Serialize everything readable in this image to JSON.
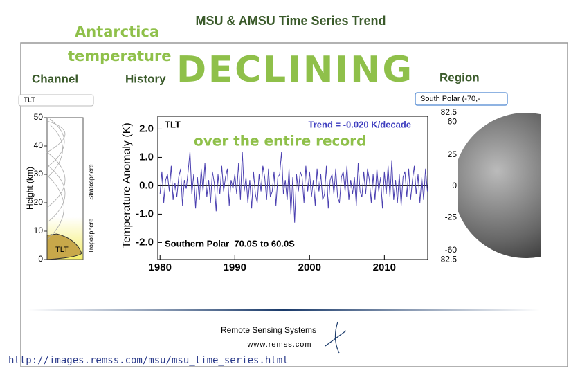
{
  "header": {
    "title": "MSU & AMSU Time Series Trend"
  },
  "annotations": {
    "line1": "Antarctica",
    "line2": "temperature",
    "headline": "DECLINING",
    "subline": "over the entire record"
  },
  "labels": {
    "channel": "Channel",
    "history": "History",
    "region": "Region"
  },
  "controls": {
    "channel": "TLT",
    "region": "South Polar (-70,-"
  },
  "height_panel": {
    "axis_label": "Height (km)",
    "ylim": [
      0,
      50
    ],
    "ticks": [
      0,
      10,
      20,
      30,
      40,
      50
    ],
    "upper_layer": "Stratosphere",
    "lower_layer": "Troposphere",
    "channel": "TLT"
  },
  "chart_data": {
    "type": "line",
    "ylabel": "Temperature Anomaly (K)",
    "channel_label": "TLT",
    "trend_label": "Trend = -0.020 K/decade",
    "region_label": "Southern Polar  70.0S to 60.0S",
    "xlim": [
      1979.7,
      2015.8
    ],
    "ylim": [
      -2.6,
      2.45
    ],
    "xticks": [
      1980,
      1990,
      2000,
      2010
    ],
    "yticks": [
      {
        "value": 2,
        "label": "2.0"
      },
      {
        "value": 1,
        "label": "1.0"
      },
      {
        "value": 0,
        "label": "0.0"
      },
      {
        "value": -1,
        "label": "-1.0"
      },
      {
        "value": -2,
        "label": "-2.0"
      }
    ],
    "x": [
      1980,
      1980.25,
      1980.5,
      1980.75,
      1981,
      1981.25,
      1981.5,
      1981.75,
      1982,
      1982.25,
      1982.5,
      1982.75,
      1983,
      1983.25,
      1983.5,
      1983.75,
      1984,
      1984.25,
      1984.5,
      1984.75,
      1985,
      1985.25,
      1985.5,
      1985.75,
      1986,
      1986.25,
      1986.5,
      1986.75,
      1987,
      1987.25,
      1987.5,
      1987.75,
      1988,
      1988.25,
      1988.5,
      1988.75,
      1989,
      1989.25,
      1989.5,
      1989.75,
      1990,
      1990.25,
      1990.5,
      1990.75,
      1991,
      1991.25,
      1991.5,
      1991.75,
      1992,
      1992.25,
      1992.5,
      1992.75,
      1993,
      1993.25,
      1993.5,
      1993.75,
      1994,
      1994.25,
      1994.5,
      1994.75,
      1995,
      1995.25,
      1995.5,
      1995.75,
      1996,
      1996.25,
      1996.5,
      1996.75,
      1997,
      1997.25,
      1997.5,
      1997.75,
      1998,
      1998.25,
      1998.5,
      1998.75,
      1999,
      1999.25,
      1999.5,
      1999.75,
      2000,
      2000.25,
      2000.5,
      2000.75,
      2001,
      2001.25,
      2001.5,
      2001.75,
      2002,
      2002.25,
      2002.5,
      2002.75,
      2003,
      2003.25,
      2003.5,
      2003.75,
      2004,
      2004.25,
      2004.5,
      2004.75,
      2005,
      2005.25,
      2005.5,
      2005.75,
      2006,
      2006.25,
      2006.5,
      2006.75,
      2007,
      2007.25,
      2007.5,
      2007.75,
      2008,
      2008.25,
      2008.5,
      2008.75,
      2009,
      2009.25,
      2009.5,
      2009.75,
      2010,
      2010.25,
      2010.5,
      2010.75,
      2011,
      2011.25,
      2011.5,
      2011.75,
      2012,
      2012.25,
      2012.5,
      2012.75,
      2013,
      2013.25,
      2013.5,
      2013.75,
      2014,
      2014.25,
      2014.5,
      2014.75,
      2015,
      2015.25,
      2015.5,
      2015.75
    ],
    "series": [
      {
        "name": "TLT",
        "color": "#4a3fb0",
        "values": [
          -0.3,
          0.5,
          -0.6,
          0.2,
          0.4,
          -0.2,
          0.7,
          -0.5,
          0.1,
          -0.4,
          0.3,
          0.6,
          -0.7,
          0.2,
          -0.1,
          0.5,
          1.2,
          -0.3,
          0.4,
          -0.8,
          0.3,
          -0.5,
          0.6,
          -0.2,
          0.8,
          -0.4,
          0.2,
          -0.6,
          0.5,
          0.1,
          -0.9,
          0.4,
          -0.3,
          0.7,
          -0.2,
          0.3,
          0.6,
          -0.7,
          0.2,
          -0.1,
          0.4,
          -0.3,
          0.8,
          -0.5,
          1.2,
          -0.2,
          0.3,
          -0.6,
          0.2,
          -0.8,
          0.5,
          -0.3,
          -0.6,
          0.4,
          -0.2,
          0.7,
          0.3,
          -0.5,
          0.6,
          -0.4,
          -0.2,
          0.5,
          -0.7,
          0.3,
          0.4,
          1.2,
          -0.3,
          0.2,
          -0.5,
          0.6,
          -1.0,
          0.3,
          -1.3,
          0.4,
          -0.2,
          0.5,
          0.3,
          -0.6,
          0.7,
          -0.2,
          0.5,
          -0.4,
          0.2,
          -0.7,
          0.6,
          -0.2,
          0.4,
          -0.5,
          -0.3,
          0.7,
          -0.8,
          0.2,
          0.4,
          -0.3,
          0.6,
          -0.4,
          -0.6,
          0.3,
          0.5,
          -0.2,
          0.7,
          -0.5,
          0.2,
          -0.3,
          0.3,
          -0.7,
          0.8,
          -0.2,
          -0.4,
          0.5,
          -0.3,
          0.6,
          0.2,
          -0.6,
          0.4,
          -0.5,
          0.6,
          -0.2,
          0.3,
          -0.8,
          0.5,
          -0.3,
          0.7,
          -0.4,
          0.9,
          -0.5,
          0.2,
          -0.6,
          0.4,
          -0.7,
          0.3,
          0.5,
          -0.4,
          0.6,
          -0.5,
          0.2,
          0.7,
          -0.3,
          0.4,
          -0.6,
          0.3,
          -0.5,
          0.6,
          -0.2
        ]
      }
    ]
  },
  "region_panel": {
    "ticks": [
      82.5,
      60,
      25,
      0,
      -25,
      -60,
      -82.5
    ]
  },
  "footer": {
    "org": "Remote Sensing Systems",
    "site": "www.remss.com",
    "url": "http://images.remss.com/msu/msu_time_series.html"
  }
}
